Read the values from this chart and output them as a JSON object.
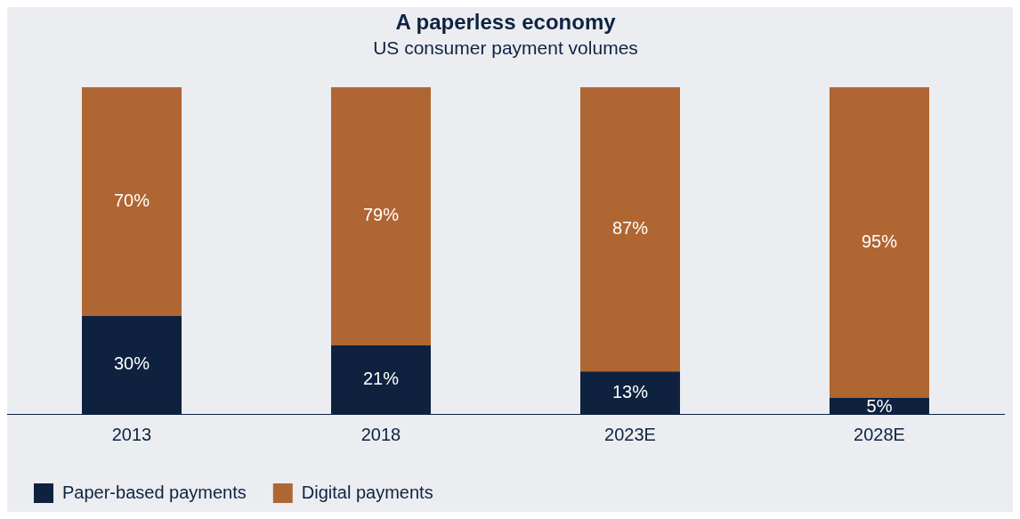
{
  "chart_data": {
    "type": "bar",
    "title": "A paperless economy",
    "subtitle": "US consumer payment volumes",
    "categories": [
      "2013",
      "2018",
      "2023E",
      "2028E"
    ],
    "stacked": true,
    "legend": "bottom left",
    "grid": false,
    "series": [
      {
        "name": "Paper-based payments",
        "color": "#0e2240",
        "values": [
          30,
          21,
          13,
          5
        ],
        "value_labels": [
          "30%",
          "21%",
          "13%",
          "5%"
        ]
      },
      {
        "name": "Digital payments",
        "color": "#b06632",
        "values": [
          70,
          79,
          87,
          95
        ],
        "value_labels": [
          "70%",
          "79%",
          "87%",
          "95%"
        ]
      }
    ]
  }
}
